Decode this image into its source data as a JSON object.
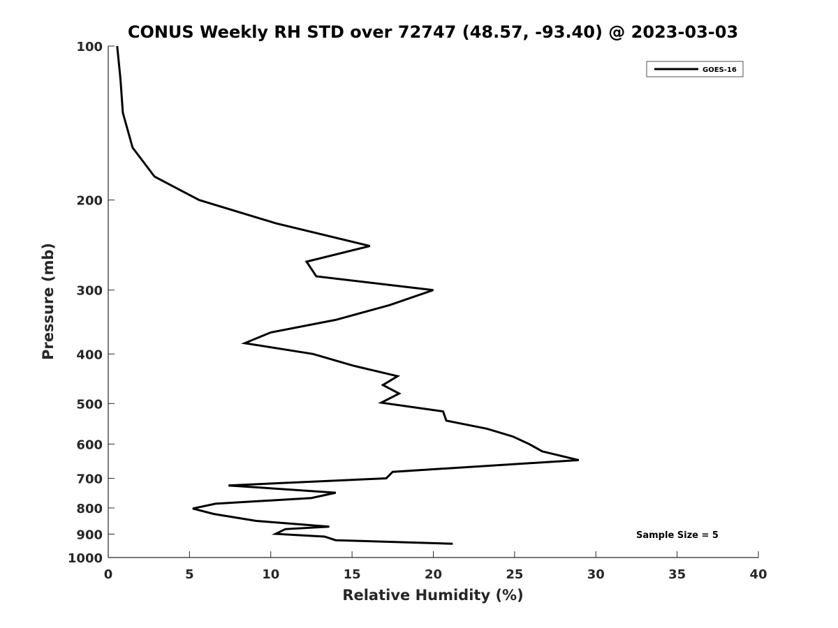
{
  "chart_data": {
    "type": "line",
    "title": "CONUS Weekly RH STD over 72747 (48.57, -93.40) @ 2023-03-03",
    "xlabel": "Relative Humidity (%)",
    "ylabel": "Pressure (mb)",
    "xlim": [
      0,
      40
    ],
    "ylim": [
      100,
      1000
    ],
    "y_scale": "log",
    "y_reversed": true,
    "x_ticks": [
      0,
      5,
      10,
      15,
      20,
      25,
      30,
      35,
      40
    ],
    "y_ticks": [
      100,
      200,
      300,
      400,
      500,
      600,
      700,
      800,
      900,
      1000
    ],
    "grid": false,
    "legend_position": "top-right",
    "annotation": "Sample Size = 5",
    "series": [
      {
        "name": "GOES-16",
        "color": "#000000",
        "points": [
          [
            0.55,
            100
          ],
          [
            0.75,
            116
          ],
          [
            0.9,
            135
          ],
          [
            1.5,
            158
          ],
          [
            2.85,
            180
          ],
          [
            5.6,
            200
          ],
          [
            10.3,
            222
          ],
          [
            16.1,
            246
          ],
          [
            12.2,
            264
          ],
          [
            12.8,
            282
          ],
          [
            20.0,
            300
          ],
          [
            17.3,
            321
          ],
          [
            14.0,
            343
          ],
          [
            10.0,
            363
          ],
          [
            8.4,
            381
          ],
          [
            12.6,
            400
          ],
          [
            15.0,
            421
          ],
          [
            17.8,
            442
          ],
          [
            16.9,
            460
          ],
          [
            17.9,
            478
          ],
          [
            16.8,
            498
          ],
          [
            20.6,
            518
          ],
          [
            20.8,
            540
          ],
          [
            23.3,
            560
          ],
          [
            24.9,
            580
          ],
          [
            25.9,
            600
          ],
          [
            26.7,
            620
          ],
          [
            28.95,
            645
          ],
          [
            17.5,
            680
          ],
          [
            17.1,
            700
          ],
          [
            7.4,
            723
          ],
          [
            14.0,
            747
          ],
          [
            12.5,
            765
          ],
          [
            6.6,
            785
          ],
          [
            5.2,
            802
          ],
          [
            6.5,
            822
          ],
          [
            9.1,
            848
          ],
          [
            13.6,
            870
          ],
          [
            10.9,
            880
          ],
          [
            10.3,
            899
          ],
          [
            13.3,
            910
          ],
          [
            14.0,
            925
          ],
          [
            21.2,
            940
          ]
        ]
      }
    ]
  }
}
